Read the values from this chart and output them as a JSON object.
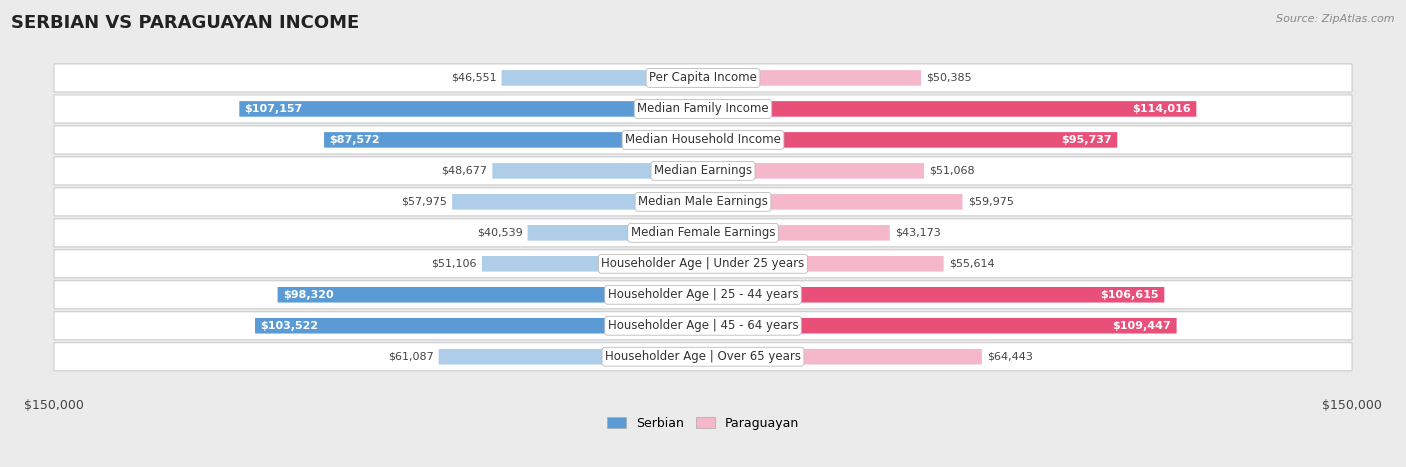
{
  "title": "SERBIAN VS PARAGUAYAN INCOME",
  "source": "Source: ZipAtlas.com",
  "categories": [
    "Per Capita Income",
    "Median Family Income",
    "Median Household Income",
    "Median Earnings",
    "Median Male Earnings",
    "Median Female Earnings",
    "Householder Age | Under 25 years",
    "Householder Age | 25 - 44 years",
    "Householder Age | 45 - 64 years",
    "Householder Age | Over 65 years"
  ],
  "serbian_values": [
    46551,
    107157,
    87572,
    48677,
    57975,
    40539,
    51106,
    98320,
    103522,
    61087
  ],
  "paraguayan_values": [
    50385,
    114016,
    95737,
    51068,
    59975,
    43173,
    55614,
    106615,
    109447,
    64443
  ],
  "serbian_labels": [
    "$46,551",
    "$107,157",
    "$87,572",
    "$48,677",
    "$57,975",
    "$40,539",
    "$51,106",
    "$98,320",
    "$103,522",
    "$61,087"
  ],
  "paraguayan_labels": [
    "$50,385",
    "$114,016",
    "$95,737",
    "$51,068",
    "$59,975",
    "$43,173",
    "$55,614",
    "$106,615",
    "$109,447",
    "$64,443"
  ],
  "serbian_color_light": "#aecde8",
  "serbian_color_dark": "#5b9bd5",
  "paraguayan_color_light": "#f5b8ca",
  "paraguayan_color_dark": "#e8507a",
  "max_value": 150000,
  "bg_color": "#ebebeb",
  "row_bg": "#f7f7f7",
  "inside_label_threshold": 70000,
  "title_fontsize": 13,
  "cat_fontsize": 8.5,
  "value_fontsize": 8.0,
  "legend_fontsize": 9
}
